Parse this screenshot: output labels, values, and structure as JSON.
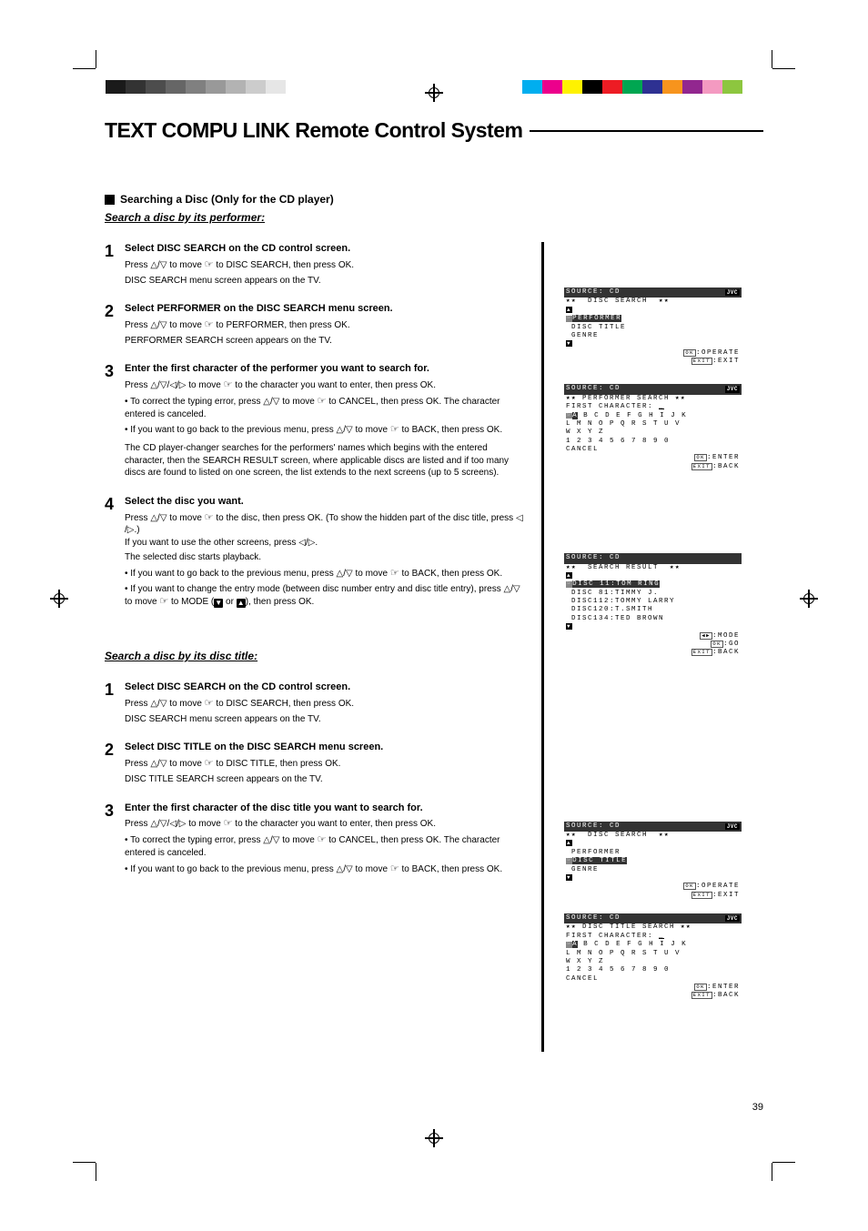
{
  "color_bar_gray": [
    "#1a1a1a",
    "#333333",
    "#4d4d4d",
    "#666666",
    "#808080",
    "#999999",
    "#b3b3b3",
    "#cccccc",
    "#e6e6e6",
    "#ffffff"
  ],
  "color_bar_rainbow": [
    "#00aeef",
    "#ec008c",
    "#fff200",
    "#000000",
    "#ed1c24",
    "#00a651",
    "#2e3192",
    "#f7941d",
    "#92278f",
    "#f49ac1",
    "#8dc63f",
    "#ffffff"
  ],
  "title": "TEXT COMPU LINK Remote Control System",
  "section1": {
    "head": "Searching a Disc (Only for the CD player)",
    "sub_a": "Search a disc by its performer:",
    "step1": {
      "title": "Select DISC SEARCH on the CD control screen.",
      "line1": "Press △/▽ to move ☞ to DISC SEARCH, then press OK.",
      "line2": "DISC SEARCH menu screen appears on the TV."
    },
    "step2": {
      "title": "Select PERFORMER on the DISC SEARCH menu screen.",
      "line1": "Press △/▽ to move ☞ to PERFORMER, then press OK.",
      "line2": "PERFORMER SEARCH screen appears on the TV."
    },
    "step3": {
      "title": "Enter the first character of the performer you want to search for.",
      "line1": "Press △/▽/◁/▷ to move ☞ to the character you want to enter, then press OK.",
      "bullets": [
        "To correct the typing error, press △/▽ to move ☞ to CANCEL, then press OK. The character entered is canceled.",
        "If you want to go back to the previous menu, press △/▽ to move ☞ to BACK, then press OK."
      ],
      "trail1": "The CD player-changer searches for the performers' names which begins with the entered character, then the SEARCH RESULT screen, where applicable discs are listed and if too many discs are found to listed on one screen, the list extends to the next screens (up to 5 screens)."
    },
    "step4": {
      "title": "Select the disc you want.",
      "line1a": "Press △/▽ to move ☞ to the disc, then press OK. (To show the hidden part of the disc title, press ◁/▷.)",
      "line1b": "If you want to use the other screens, press ◁/▷.",
      "line2": "The selected disc starts playback.",
      "bullets": [
        "If you want to go back to the previous menu, press △/▽ to move ☞ to BACK, then press OK.",
        "If you want to change the entry mode (between disc number entry and disc title entry), press △/▽ to move ☞ to MODE (⬇ or ⬆), then press OK."
      ]
    },
    "sub_b": "Search a disc by its disc title:",
    "b_step1": {
      "title": "Select DISC SEARCH on the CD control screen.",
      "line1": "Press △/▽ to move ☞ to DISC SEARCH, then press OK.",
      "line2": "DISC SEARCH menu screen appears on the TV."
    },
    "b_step2": {
      "title": "Select DISC TITLE on the DISC SEARCH menu screen.",
      "line1": "Press △/▽ to move ☞ to DISC TITLE, then press OK.",
      "line2": "DISC TITLE SEARCH screen appears on the TV."
    },
    "b_step3": {
      "title": "Enter the first character of the disc title you want to search for.",
      "line1": "Press △/▽/◁/▷ to move ☞ to the character you want to enter, then press OK.",
      "bullets": [
        "To correct the typing error, press △/▽ to move ☞ to CANCEL, then press OK. The character entered is canceled.",
        "If you want to go back to the previous menu, press △/▽ to move ☞ to BACK, then press OK."
      ]
    }
  },
  "tv": {
    "source": "SOURCE: CD",
    "logo": "JVC",
    "disc_search": "★★  DISC SEARCH  ★★",
    "performer": "PERFORMER",
    "disc_title": "DISC TITLE",
    "genre": "GENRE",
    "operate": ":OPERATE",
    "exit": ":EXIT",
    "perf_search": "★★ PERFORMER SEARCH ★★",
    "first_char": "FIRST CHARACTER:",
    "row1": "A B C D E F G H I J K",
    "row2": "L M N O P Q R S T U V",
    "row3": "W X Y Z",
    "row4": "1 2 3 4 5 6 7 8 9 0",
    "cancel": "CANCEL",
    "enter": ":ENTER",
    "back": ":BACK",
    "search_result": "★★  SEARCH RESULT  ★★",
    "res1": "DISC 11:TOM RING",
    "res2": "DISC 81:TIMMY J.",
    "res3": "DISC112:TOMMY LARRY",
    "res4": "DISC120:T.SMITH",
    "res5": "DISC134:TED BROWN",
    "mode": ":MODE",
    "go": ":GO",
    "dt_search": "★★ DISC TITLE SEARCH ★★"
  },
  "page_number": "39"
}
